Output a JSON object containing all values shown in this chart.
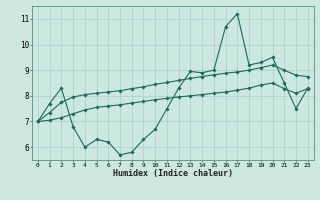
{
  "title": "",
  "xlabel": "Humidex (Indice chaleur)",
  "ylabel": "",
  "bg_color": "#cce8e0",
  "grid_color": "#aacfc8",
  "line_color": "#1a6b5a",
  "xlim": [
    -0.5,
    23.5
  ],
  "ylim": [
    5.5,
    11.5
  ],
  "yticks": [
    6,
    7,
    8,
    9,
    10,
    11
  ],
  "xticks": [
    0,
    1,
    2,
    3,
    4,
    5,
    6,
    7,
    8,
    9,
    10,
    11,
    12,
    13,
    14,
    15,
    16,
    17,
    18,
    19,
    20,
    21,
    22,
    23
  ],
  "series1_x": [
    0,
    1,
    2,
    3,
    4,
    5,
    6,
    7,
    8,
    9,
    10,
    11,
    12,
    13,
    14,
    15,
    16,
    17,
    18,
    19,
    20,
    21,
    22,
    23
  ],
  "series1_y": [
    7.0,
    7.7,
    8.3,
    6.8,
    6.0,
    6.3,
    6.2,
    5.7,
    5.8,
    6.3,
    6.7,
    7.5,
    8.3,
    8.95,
    8.9,
    9.0,
    10.7,
    11.2,
    9.2,
    9.3,
    9.5,
    8.5,
    7.5,
    8.3
  ],
  "series2_x": [
    0,
    1,
    2,
    3,
    4,
    5,
    6,
    7,
    8,
    9,
    10,
    11,
    12,
    13,
    14,
    15,
    16,
    17,
    18,
    19,
    20,
    21,
    22,
    23
  ],
  "series2_y": [
    7.0,
    7.35,
    7.75,
    7.95,
    8.05,
    8.1,
    8.15,
    8.2,
    8.28,
    8.35,
    8.45,
    8.52,
    8.6,
    8.68,
    8.75,
    8.82,
    8.88,
    8.93,
    9.0,
    9.1,
    9.2,
    9.0,
    8.8,
    8.75
  ],
  "series3_x": [
    0,
    1,
    2,
    3,
    4,
    5,
    6,
    7,
    8,
    9,
    10,
    11,
    12,
    13,
    14,
    15,
    16,
    17,
    18,
    19,
    20,
    21,
    22,
    23
  ],
  "series3_y": [
    7.0,
    7.05,
    7.15,
    7.3,
    7.45,
    7.55,
    7.6,
    7.65,
    7.72,
    7.78,
    7.85,
    7.9,
    7.96,
    8.0,
    8.05,
    8.1,
    8.15,
    8.22,
    8.3,
    8.42,
    8.5,
    8.28,
    8.1,
    8.28
  ]
}
